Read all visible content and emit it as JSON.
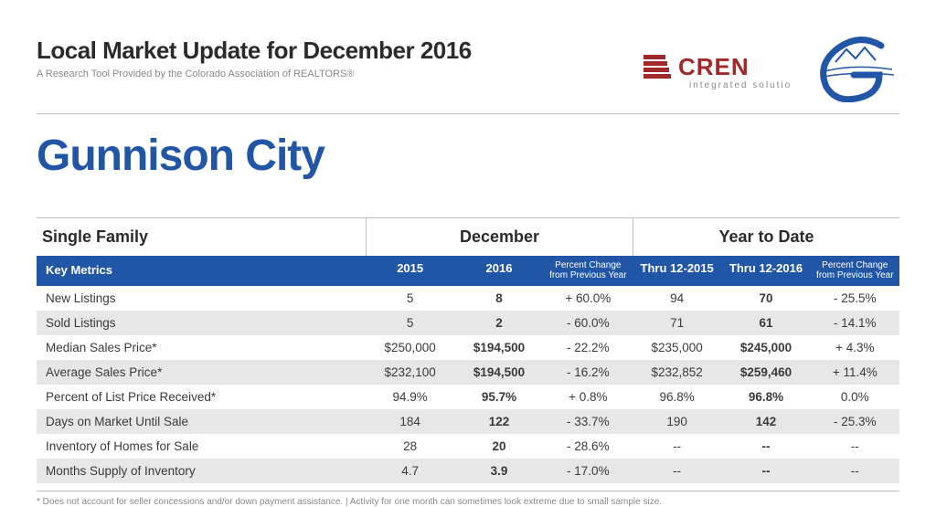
{
  "header": {
    "title": "Local Market Update for December 2016",
    "subtitle": "A Research Tool Provided by the Colorado Association of REALTORS®"
  },
  "logos": {
    "cren_main": "CREN",
    "cren_sub": "integrated solutions",
    "cren_red": "#a02828",
    "g_blue": "#2156a6"
  },
  "city": "Gunnison City",
  "table": {
    "category": "Single Family",
    "groups": [
      "December",
      "Year to Date"
    ],
    "header_row": {
      "label": "Key Metrics",
      "cols": [
        "2015",
        "2016",
        "Percent Change",
        "from Previous Year",
        "Thru 12-2015",
        "Thru 12-2016",
        "Percent Change",
        "from Previous Year"
      ]
    },
    "rows": [
      {
        "metric": "New Listings",
        "striped": false,
        "cells": [
          "5",
          "8",
          "+ 60.0%",
          "94",
          "70",
          "- 25.5%"
        ]
      },
      {
        "metric": "Sold Listings",
        "striped": true,
        "cells": [
          "5",
          "2",
          "- 60.0%",
          "71",
          "61",
          "- 14.1%"
        ]
      },
      {
        "metric": "Median Sales Price*",
        "striped": false,
        "cells": [
          "$250,000",
          "$194,500",
          "- 22.2%",
          "$235,000",
          "$245,000",
          "+ 4.3%"
        ]
      },
      {
        "metric": "Average Sales Price*",
        "striped": true,
        "cells": [
          "$232,100",
          "$194,500",
          "- 16.2%",
          "$232,852",
          "$259,460",
          "+ 11.4%"
        ]
      },
      {
        "metric": "Percent of List Price Received*",
        "striped": false,
        "cells": [
          "94.9%",
          "95.7%",
          "+ 0.8%",
          "96.8%",
          "96.8%",
          "0.0%"
        ]
      },
      {
        "metric": "Days on Market Until Sale",
        "striped": true,
        "cells": [
          "184",
          "122",
          "- 33.7%",
          "190",
          "142",
          "- 25.3%"
        ]
      },
      {
        "metric": "Inventory of Homes for Sale",
        "striped": false,
        "cells": [
          "28",
          "20",
          "- 28.6%",
          "--",
          "--",
          "--"
        ]
      },
      {
        "metric": "Months Supply of Inventory",
        "striped": true,
        "cells": [
          "4.7",
          "3.9",
          "- 17.0%",
          "--",
          "--",
          "--"
        ]
      }
    ]
  },
  "footnote": "* Does not account for seller concessions and/or down payment assistance.  |  Activity for one month can sometimes look extreme due to small sample size.",
  "colors": {
    "blue": "#2156a6",
    "stripe": "#e7e7e7",
    "border": "#bfbfbf",
    "text": "#3a3a3a",
    "muted": "#888888"
  }
}
